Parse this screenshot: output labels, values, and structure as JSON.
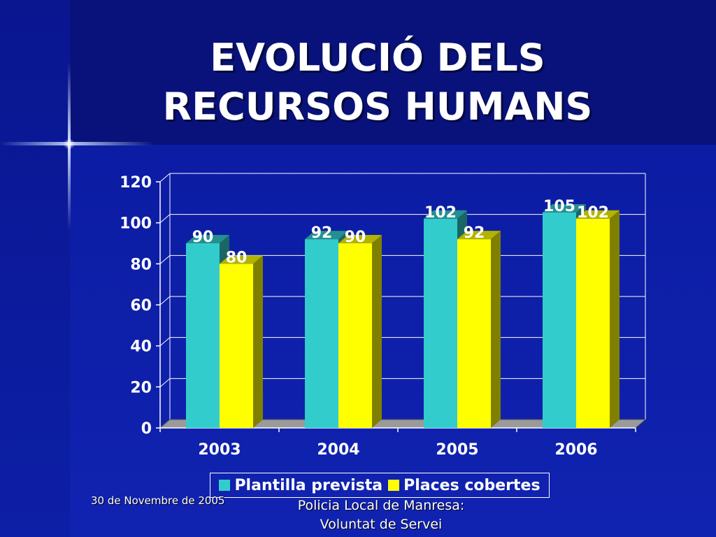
{
  "slide": {
    "title_line1": "EVOLUCIÓ DELS",
    "title_line2": "RECURSOS HUMANS",
    "footer_date": "30 de Novembre de 2005",
    "footer_org_line1": "Policia Local de Manresa:",
    "footer_org_line2": "Voluntat de Servei"
  },
  "colors": {
    "series1": "#33cccc",
    "series2": "#ffff00",
    "background": "#0a1590"
  },
  "chart_data": {
    "type": "bar",
    "title": "",
    "xlabel": "",
    "ylabel": "",
    "categories": [
      "2003",
      "2004",
      "2005",
      "2006"
    ],
    "series": [
      {
        "name": "Plantilla prevista",
        "values": [
          90,
          92,
          102,
          105
        ]
      },
      {
        "name": "Places cobertes",
        "values": [
          80,
          90,
          92,
          102
        ]
      }
    ],
    "ylim": [
      0,
      120
    ],
    "yticks": [
      0,
      20,
      40,
      60,
      80,
      100,
      120
    ],
    "grid": true,
    "legend": "bottom",
    "data_labels": true
  }
}
